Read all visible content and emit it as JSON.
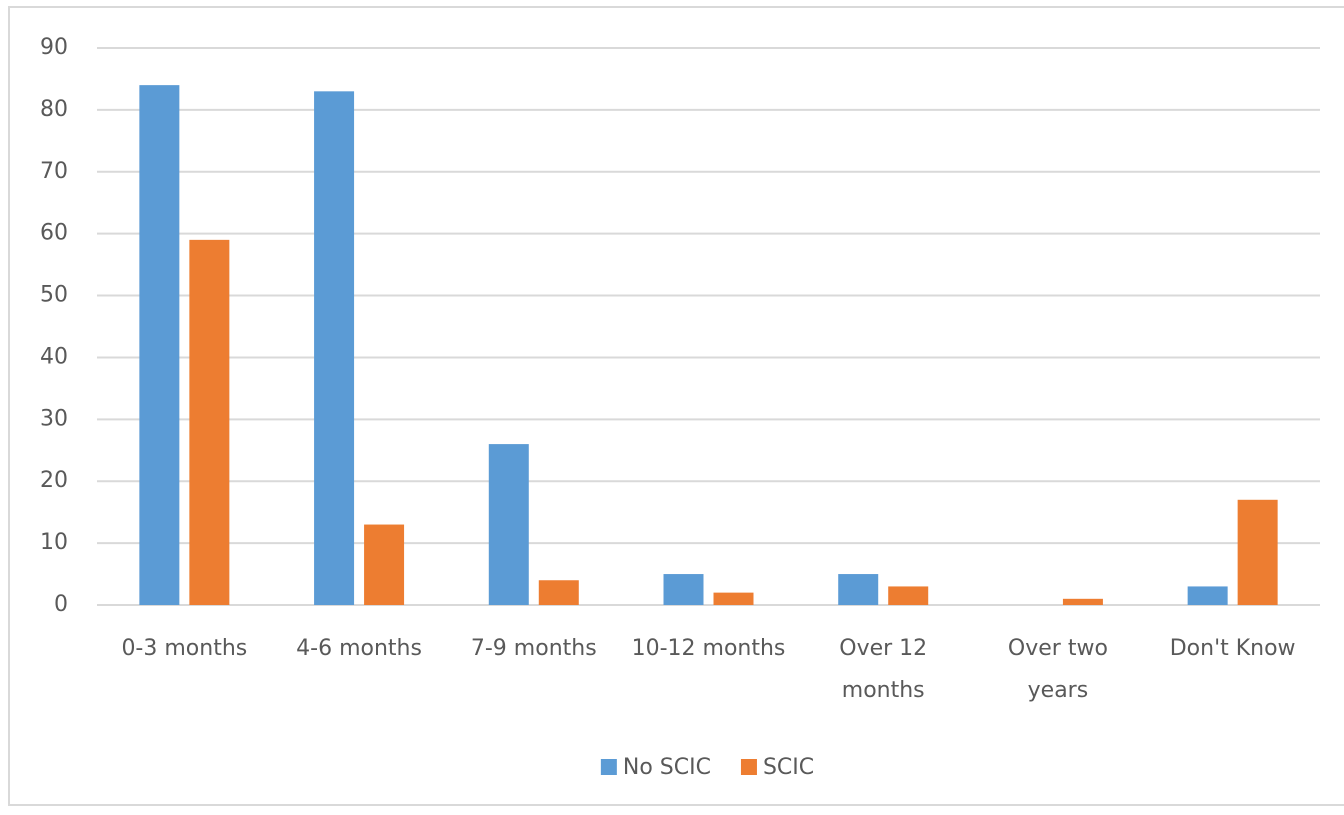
{
  "chart_data": {
    "type": "bar",
    "categories": [
      "0-3 months",
      "4-6 months",
      "7-9 months",
      "10-12 months",
      "Over 12 months",
      "Over two years",
      "Don't Know"
    ],
    "series": [
      {
        "name": "No SCIC",
        "color": "#5b9bd5",
        "values": [
          84,
          83,
          26,
          5,
          5,
          0,
          3
        ]
      },
      {
        "name": "SCIC",
        "color": "#ed7d31",
        "values": [
          59,
          13,
          4,
          2,
          3,
          1,
          17
        ]
      }
    ],
    "ylim": [
      0,
      90
    ],
    "yticks": [
      0,
      10,
      20,
      30,
      40,
      50,
      60,
      70,
      80,
      90
    ],
    "grid": true,
    "legend": "bottom"
  }
}
